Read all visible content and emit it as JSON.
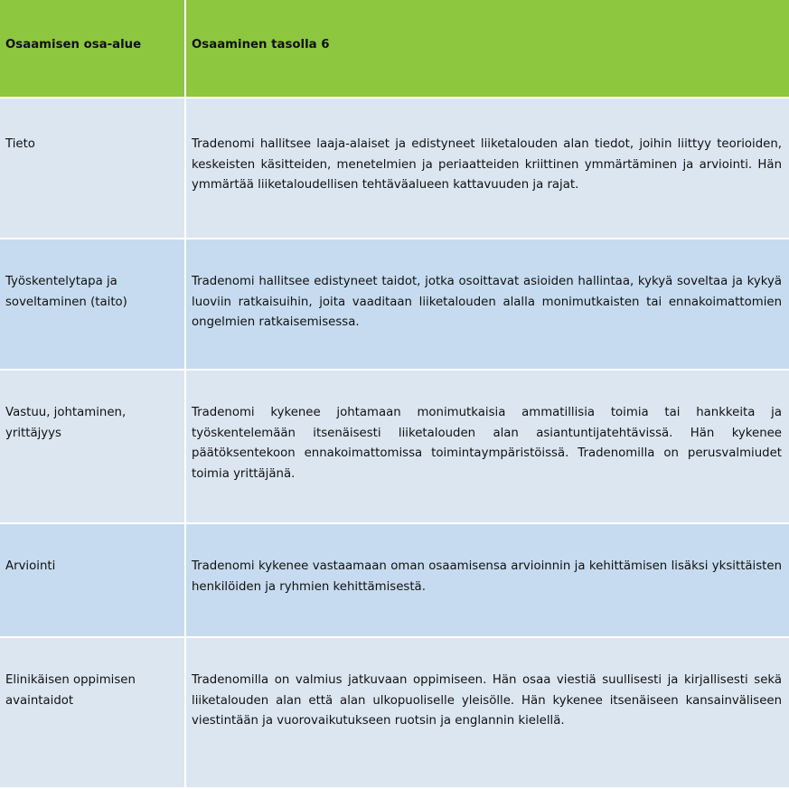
{
  "table": {
    "headers": [
      "Osaamisen osa-alue",
      "Osaaminen tasolla 6"
    ],
    "colors": {
      "header": "#8dc63f",
      "row_light": "#dce6f1",
      "row_dark": "#c6dbef"
    },
    "rows": [
      {
        "area": "Tieto",
        "description": "Tradenomi hallitsee laaja-alaiset ja edistyneet liiketalouden alan tiedot, joihin liittyy teorioiden, keskeisten käsitteiden, menetelmien ja periaatteiden kriittinen ymmärtäminen ja arviointi. Hän ymmärtää liiketaloudellisen tehtäväalueen kattavuuden ja rajat."
      },
      {
        "area": "Työskentelytapa ja soveltaminen (taito)",
        "description": "Tradenomi hallitsee edistyneet taidot, jotka osoittavat asioiden hallintaa, kykyä soveltaa ja kykyä luoviin ratkaisuihin, joita vaaditaan liiketalouden alalla monimutkaisten tai ennakoimattomien ongelmien ratkaisemisessa."
      },
      {
        "area": "Vastuu, johtaminen, yrittäjyys",
        "description": "Tradenomi kykenee johtamaan monimutkaisia ammatillisia toimia tai hankkeita ja työskentelemään itsenäisesti liiketalouden alan asiantuntijatehtävissä. Hän kykenee päätöksentekoon ennakoimattomissa toimintaympäristöissä. Tradenomilla on perusvalmiudet toimia yrittäjänä."
      },
      {
        "area": "Arviointi",
        "description": "Tradenomi kykenee vastaamaan oman osaamisensa arvioinnin ja kehittämisen lisäksi yksittäisten henkilöiden ja ryhmien kehittämisestä."
      },
      {
        "area": "Elinikäisen oppimisen avaintaidot",
        "description": "Tradenomilla on valmius jatkuvaan oppimiseen. Hän osaa viestiä suullisesti ja kirjallisesti sekä liiketalouden alan että alan ulkopuoliselle yleisölle. Hän kykenee itsenäiseen kansainväliseen viestintään ja vuorovaikutukseen ruotsin ja englannin kielellä."
      }
    ]
  }
}
